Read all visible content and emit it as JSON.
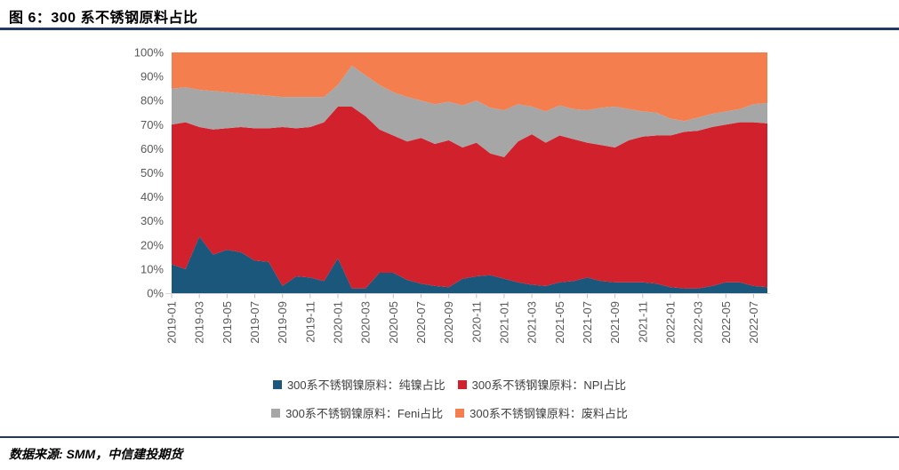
{
  "header": {
    "title": "图 6：300 系不锈钢原料占比"
  },
  "footer": {
    "source": "数据来源: SMM，中信建投期货"
  },
  "colors": {
    "rule": "#1F3864",
    "axis_line": "#D9D9D9",
    "tick_mark": "#BFBFBF",
    "tick_label": "#595959",
    "legend_text": "#404040",
    "background": "#FFFFFF"
  },
  "chart_data": {
    "type": "area",
    "stacked": true,
    "units": "percent",
    "grid": false,
    "legend_position": "bottom",
    "x": [
      "2019-01",
      "2019-02",
      "2019-03",
      "2019-04",
      "2019-05",
      "2019-06",
      "2019-07",
      "2019-08",
      "2019-09",
      "2019-10",
      "2019-11",
      "2019-12",
      "2020-01",
      "2020-02",
      "2020-03",
      "2020-04",
      "2020-05",
      "2020-06",
      "2020-07",
      "2020-08",
      "2020-09",
      "2020-10",
      "2020-11",
      "2020-12",
      "2021-01",
      "2021-02",
      "2021-03",
      "2021-04",
      "2021-05",
      "2021-06",
      "2021-07",
      "2021-08",
      "2021-09",
      "2021-10",
      "2021-11",
      "2021-12",
      "2022-01",
      "2022-02",
      "2022-03",
      "2022-04",
      "2022-05",
      "2022-06",
      "2022-07",
      "2022-08"
    ],
    "x_tick_every": 2,
    "x_tick_label_count": 22,
    "ylim": [
      0,
      100
    ],
    "y_tick_step": 10,
    "y_tick_suffix": "%",
    "series": [
      {
        "name": "300系不锈钢镍原料：纯镍占比",
        "color": "#1B567B",
        "values": [
          12,
          10,
          23.5,
          16,
          18,
          17,
          13.5,
          13,
          3,
          7,
          6.5,
          5,
          14.5,
          2,
          2,
          8.5,
          8.5,
          5.5,
          4,
          3,
          2.5,
          6,
          7,
          7.5,
          6,
          4.5,
          3.5,
          3,
          4.5,
          5,
          6.5,
          5,
          4.5,
          4.5,
          4.5,
          4,
          2.5,
          2,
          2,
          3,
          4.5,
          4.5,
          3,
          2.5
        ]
      },
      {
        "name": "300系不锈钢镍原料：NPI占比",
        "color": "#D0212D",
        "values": [
          58,
          61,
          45.5,
          52,
          50.5,
          52,
          55,
          55.5,
          66,
          61.5,
          62.5,
          66,
          63,
          75.5,
          71.5,
          59.5,
          57,
          57.5,
          60.5,
          59,
          61,
          54.5,
          55.5,
          50.5,
          50.5,
          58.5,
          62.5,
          59.5,
          61,
          59,
          56,
          56.5,
          56,
          59,
          60.5,
          61.5,
          63,
          65,
          65.5,
          66,
          65.5,
          66.5,
          68,
          68
        ]
      },
      {
        "name": "300系不锈钢镍原料：Feni占比",
        "color": "#A6A6A6",
        "values": [
          15,
          14.5,
          15.5,
          16,
          15,
          14,
          14,
          13.5,
          12.5,
          13,
          12.5,
          10.5,
          9,
          17,
          17,
          18.5,
          18,
          18.5,
          15.5,
          16.5,
          16,
          17.5,
          17.5,
          19,
          19.5,
          15.5,
          11.5,
          13,
          12.5,
          12.5,
          13.5,
          15.5,
          17,
          13,
          10.5,
          9.5,
          7,
          4.5,
          5.5,
          5.5,
          5.5,
          5.5,
          7.5,
          8.5
        ]
      },
      {
        "name": "300系不锈钢镍原料：废料占比",
        "color": "#F57E4F",
        "values": [
          15,
          14.5,
          15.5,
          16,
          16.5,
          17,
          17.5,
          18,
          18.5,
          18.5,
          18.5,
          18.5,
          13.5,
          5.5,
          9.5,
          13.5,
          16.5,
          18.5,
          20,
          21.5,
          20.5,
          22,
          20,
          23,
          24,
          21.5,
          22.5,
          24.5,
          22,
          23.5,
          24,
          23,
          22.5,
          23.5,
          24.5,
          25,
          27.5,
          28.5,
          27,
          25.5,
          24.5,
          23.5,
          21.5,
          21
        ]
      }
    ]
  }
}
